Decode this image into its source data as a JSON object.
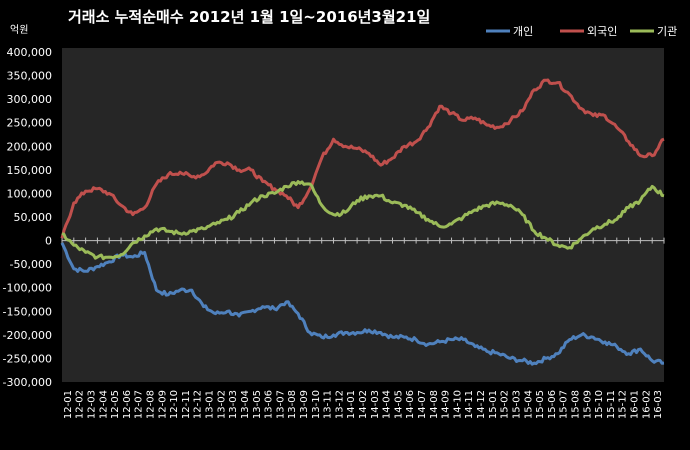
{
  "chart_data": {
    "type": "line",
    "title": "거래소  누적순매수 2012년 1월 1일~2016년3월21일",
    "unit_label": "억원",
    "ylim": [
      -300000,
      400000
    ],
    "y_ticks": [
      "400,000",
      "350,000",
      "300,000",
      "250,000",
      "200,000",
      "150,000",
      "100,000",
      "50,000",
      "0",
      "-50,000",
      "-100,000",
      "-150,000",
      "-200,000",
      "-250,000",
      "-300,000"
    ],
    "y_tick_values": [
      400000,
      350000,
      300000,
      250000,
      200000,
      150000,
      100000,
      50000,
      0,
      -50000,
      -100000,
      -150000,
      -200000,
      -250000,
      -300000
    ],
    "x_ticks": [
      "12-01",
      "12-02",
      "12-03",
      "12-04",
      "12-05",
      "12-06",
      "12-07",
      "12-08",
      "12-09",
      "12-10",
      "12-11",
      "12-12",
      "13-01",
      "13-02",
      "13-03",
      "13-04",
      "13-05",
      "13-06",
      "13-07",
      "13-08",
      "13-09",
      "13-10",
      "13-11",
      "13-12",
      "14-01",
      "14-02",
      "14-03",
      "14-04",
      "14-05",
      "14-06",
      "14-07",
      "14-08",
      "14-09",
      "14-10",
      "14-11",
      "14-12",
      "15-01",
      "15-02",
      "15-03",
      "15-04",
      "15-05",
      "15-06",
      "15-07",
      "15-08",
      "15-09",
      "15-10",
      "15-11",
      "15-12",
      "16-01",
      "16-02",
      "16-03"
    ],
    "legend_position": "top-right",
    "grid": false,
    "series": [
      {
        "name": "개인",
        "color": "#4f81bd",
        "values": [
          -5000,
          -60000,
          -65000,
          -55000,
          -45000,
          -30000,
          -35000,
          -25000,
          -105000,
          -115000,
          -105000,
          -105000,
          -140000,
          -155000,
          -150000,
          -160000,
          -150000,
          -140000,
          -145000,
          -130000,
          -155000,
          -195000,
          -205000,
          -200000,
          -195000,
          -195000,
          -190000,
          -195000,
          -205000,
          -205000,
          -210000,
          -220000,
          -215000,
          -210000,
          -210000,
          -225000,
          -235000,
          -240000,
          -250000,
          -255000,
          -260000,
          -250000,
          -240000,
          -210000,
          -200000,
          -205000,
          -215000,
          -225000,
          -240000,
          -230000,
          -255000,
          -260000
        ]
      },
      {
        "name": "외국인",
        "color": "#c0504d",
        "values": [
          5000,
          80000,
          105000,
          110000,
          100000,
          75000,
          55000,
          70000,
          120000,
          140000,
          145000,
          135000,
          140000,
          165000,
          165000,
          150000,
          150000,
          125000,
          110000,
          95000,
          70000,
          110000,
          175000,
          215000,
          200000,
          195000,
          185000,
          160000,
          175000,
          200000,
          210000,
          240000,
          285000,
          270000,
          255000,
          260000,
          245000,
          240000,
          255000,
          275000,
          320000,
          340000,
          335000,
          310000,
          280000,
          265000,
          265000,
          240000,
          210000,
          180000,
          180000,
          215000
        ]
      },
      {
        "name": "기관",
        "color": "#9bbb59",
        "values": [
          15000,
          -10000,
          -25000,
          -35000,
          -35000,
          -30000,
          -5000,
          10000,
          25000,
          20000,
          15000,
          20000,
          25000,
          35000,
          45000,
          60000,
          80000,
          95000,
          100000,
          115000,
          125000,
          120000,
          75000,
          55000,
          60000,
          85000,
          95000,
          95000,
          80000,
          75000,
          60000,
          45000,
          30000,
          35000,
          50000,
          65000,
          75000,
          80000,
          75000,
          55000,
          20000,
          5000,
          -10000,
          -15000,
          5000,
          25000,
          35000,
          45000,
          70000,
          85000,
          115000,
          95000
        ]
      }
    ]
  }
}
